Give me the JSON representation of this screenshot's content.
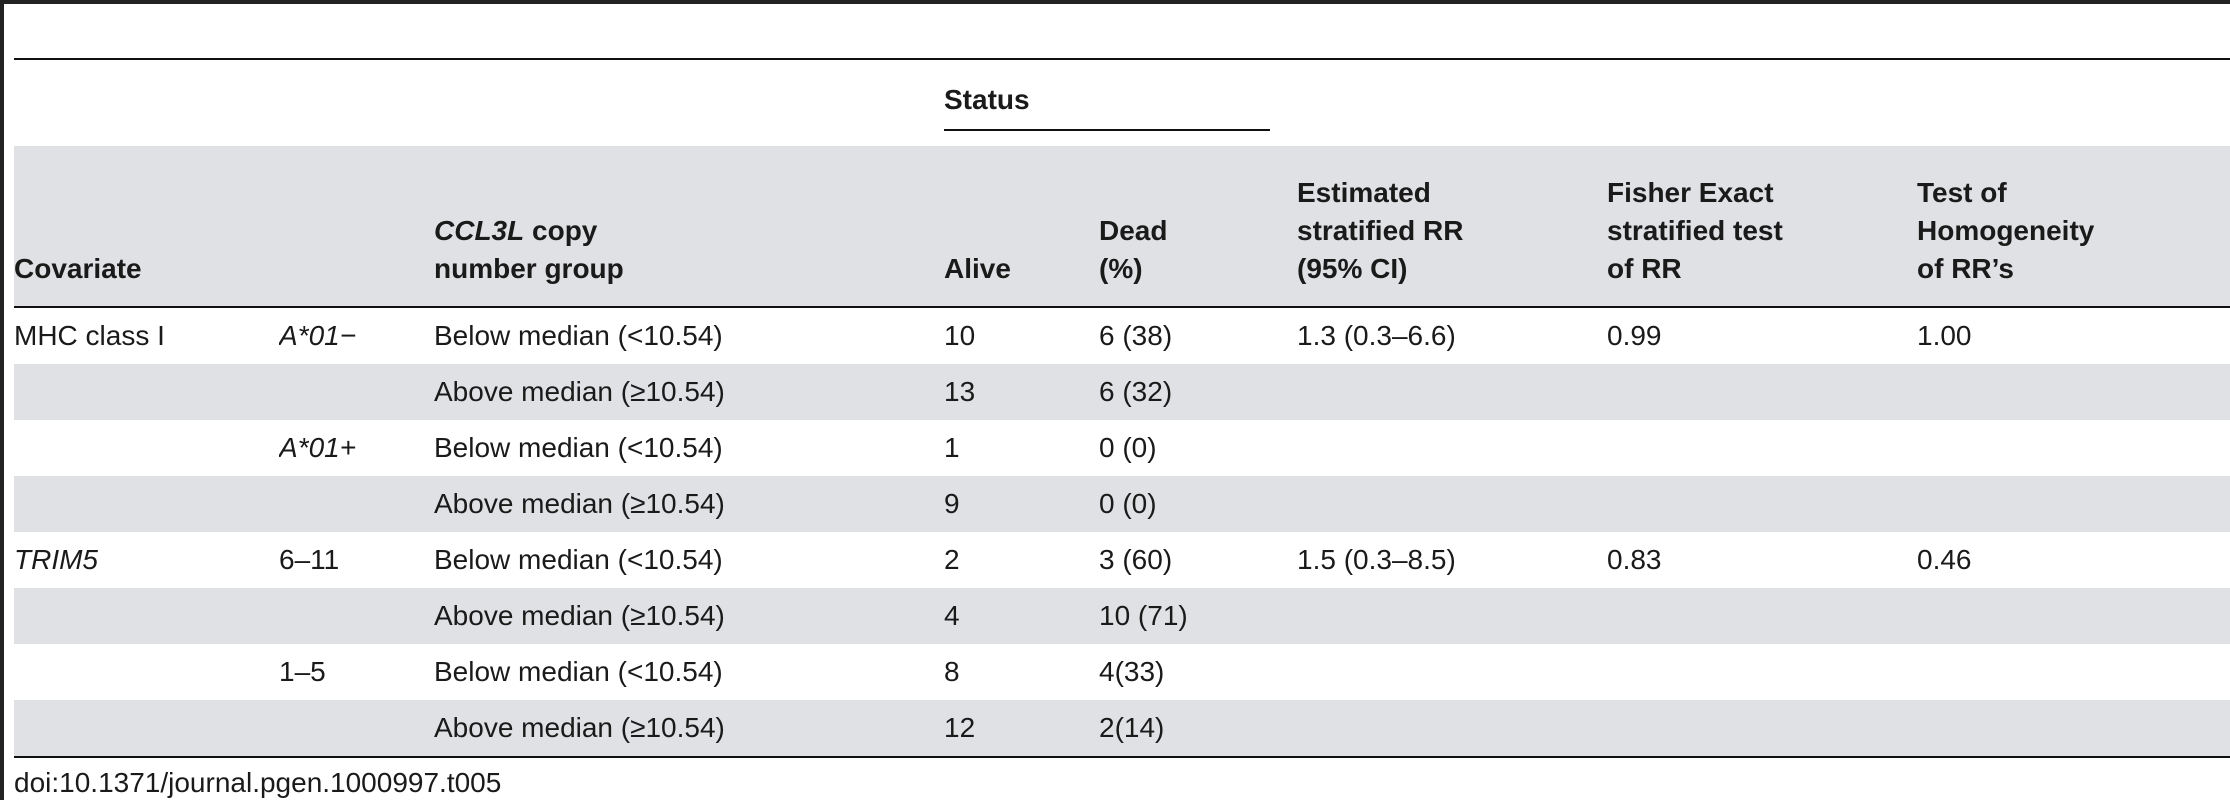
{
  "table": {
    "status_header": "Status",
    "columns": {
      "covariate": "Covariate",
      "ccl3l_italic": "CCL3L",
      "ccl3l_rest": " copy",
      "ccl3l_line2": "number group",
      "alive": "Alive",
      "dead_line1": "Dead",
      "dead_line2": "(%)",
      "rr_line1": "Estimated",
      "rr_line2": "stratified RR",
      "rr_line3": "(95% CI)",
      "fisher_line1": "Fisher Exact",
      "fisher_line2": "stratified test",
      "fisher_line3": "of RR",
      "homog_line1": "Test of",
      "homog_line2": "Homogeneity",
      "homog_line3": "of RR’s"
    },
    "rows": [
      {
        "covariate": "MHC class I",
        "level": "A*01−",
        "group": "Below median (<10.54)",
        "alive": "10",
        "dead": "6 (38)",
        "rr": "1.3 (0.3–6.6)",
        "fisher": "0.99",
        "homog": "1.00"
      },
      {
        "covariate": "",
        "level": "",
        "group": "Above median (≥10.54)",
        "alive": "13",
        "dead": "6 (32)",
        "rr": "",
        "fisher": "",
        "homog": ""
      },
      {
        "covariate": "",
        "level": "A*01+",
        "group": "Below median (<10.54)",
        "alive": "1",
        "dead": "0 (0)",
        "rr": "",
        "fisher": "",
        "homog": ""
      },
      {
        "covariate": "",
        "level": "",
        "group": "Above median (≥10.54)",
        "alive": "9",
        "dead": "0 (0)",
        "rr": "",
        "fisher": "",
        "homog": ""
      },
      {
        "covariate": "TRIM5",
        "level": "6–11",
        "group": "Below median (<10.54)",
        "alive": "2",
        "dead": "3 (60)",
        "rr": "1.5 (0.3–8.5)",
        "fisher": "0.83",
        "homog": "0.46"
      },
      {
        "covariate": "",
        "level": "",
        "group": "Above median (≥10.54)",
        "alive": "4",
        "dead": "10 (71)",
        "rr": "",
        "fisher": "",
        "homog": ""
      },
      {
        "covariate": "",
        "level": "1–5",
        "group": "Below median (<10.54)",
        "alive": "8",
        "dead": "4(33)",
        "rr": "",
        "fisher": "",
        "homog": ""
      },
      {
        "covariate": "",
        "level": "",
        "group": "Above median (≥10.54)",
        "alive": "12",
        "dead": "2(14)",
        "rr": "",
        "fisher": "",
        "homog": ""
      }
    ]
  },
  "doi": "doi:10.1371/journal.pgen.1000997.t005"
}
